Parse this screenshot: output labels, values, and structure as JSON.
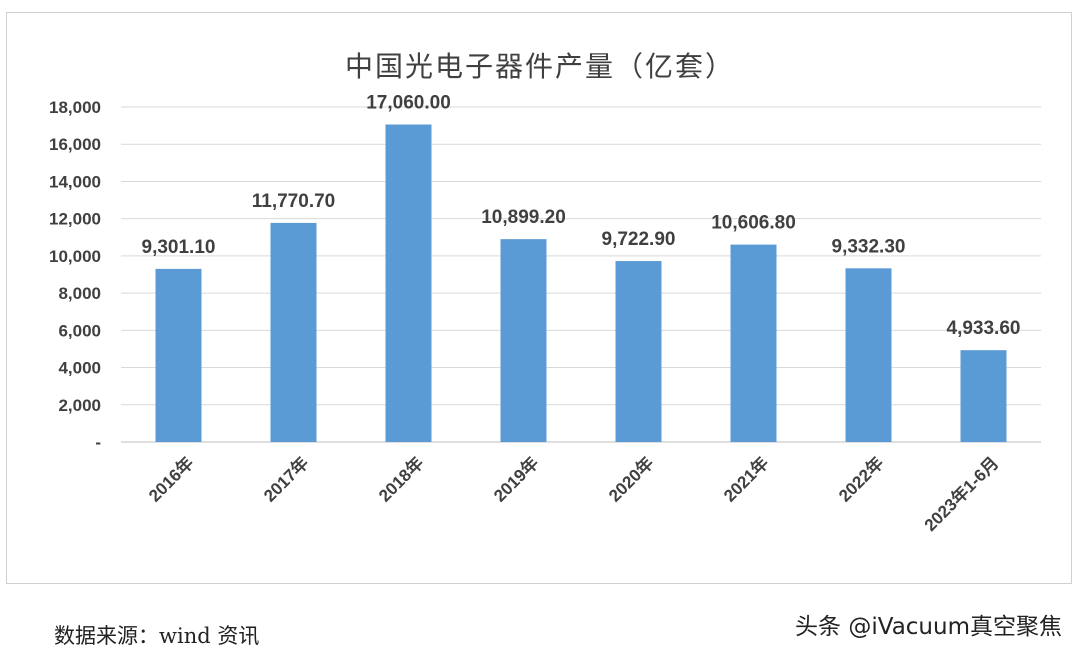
{
  "chart_data": {
    "type": "bar",
    "title": "中国光电子器件产量（亿套）",
    "categories": [
      "2016年",
      "2017年",
      "2018年",
      "2019年",
      "2020年",
      "2021年",
      "2022年",
      "2023年1-6月"
    ],
    "values": [
      9301.1,
      11770.7,
      17060.0,
      10899.2,
      9722.9,
      10606.8,
      9332.3,
      4933.6
    ],
    "data_labels": [
      "9,301.10",
      "11,770.70",
      "17,060.00",
      "10,899.20",
      "9,722.90",
      "10,606.80",
      "9,332.30",
      "4,933.60"
    ],
    "y_ticks": [
      0,
      2000,
      4000,
      6000,
      8000,
      10000,
      12000,
      14000,
      16000,
      18000
    ],
    "y_tick_labels": [
      "-",
      "2,000",
      "4,000",
      "6,000",
      "8,000",
      "10,000",
      "12,000",
      "14,000",
      "16,000",
      "18,000"
    ],
    "ylim": [
      0,
      18000
    ],
    "grid": true,
    "legend": "none",
    "bar_color": "#5B9BD5",
    "grid_color": "#d9d9d9"
  },
  "footer": {
    "source": "数据来源：wind 资讯",
    "watermark": "头条 @iVacuum真空聚焦"
  }
}
